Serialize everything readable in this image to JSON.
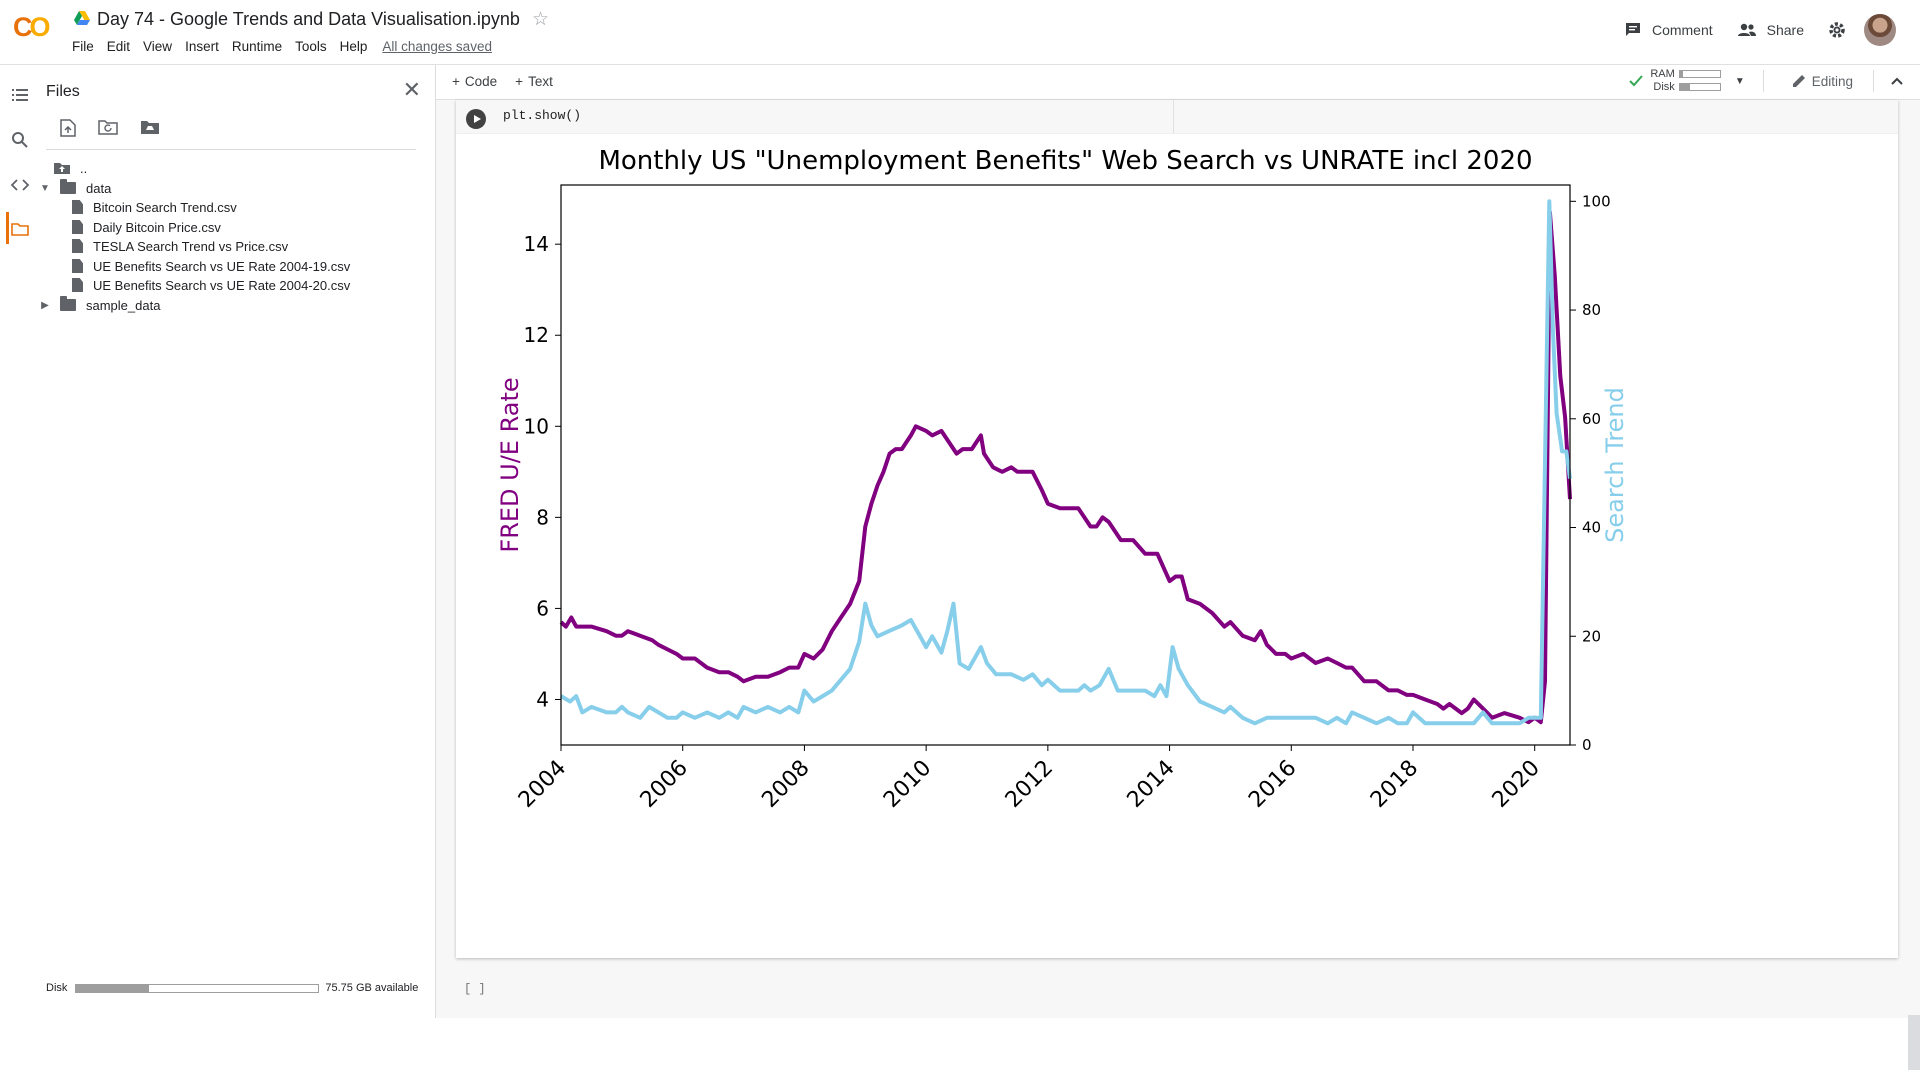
{
  "header": {
    "logo": "CO",
    "notebook_title": "Day 74 - Google Trends and Data Visualisation.ipynb",
    "menu": [
      "File",
      "Edit",
      "View",
      "Insert",
      "Runtime",
      "Tools",
      "Help"
    ],
    "save_status": "All changes saved",
    "comment_label": "Comment",
    "share_label": "Share"
  },
  "files_panel": {
    "title": "Files",
    "tree": [
      {
        "label": "..",
        "type": "up"
      },
      {
        "label": "data",
        "type": "folder",
        "expanded": true
      },
      {
        "label": "Bitcoin Search Trend.csv",
        "type": "file"
      },
      {
        "label": "Daily Bitcoin Price.csv",
        "type": "file"
      },
      {
        "label": "TESLA Search Trend vs Price.csv",
        "type": "file"
      },
      {
        "label": "UE Benefits Search vs UE Rate 2004-19.csv",
        "type": "file"
      },
      {
        "label": "UE Benefits Search vs UE Rate 2004-20.csv",
        "type": "file"
      },
      {
        "label": "sample_data",
        "type": "folder",
        "expanded": false
      }
    ],
    "disk_label": "Disk",
    "disk_available": "75.75 GB available",
    "disk_used_fraction": 0.3
  },
  "toolbar": {
    "add_code": "Code",
    "add_text": "Text",
    "ram_label": "RAM",
    "disk_label": "Disk",
    "ram_fraction": 0.08,
    "disk_fraction": 0.25,
    "mode_label": "Editing"
  },
  "cell": {
    "code": "plt.show()",
    "empty_cell_marker": "[ ]"
  },
  "chart_data": {
    "type": "line",
    "title": "Monthly US \"Unemployment Benefits\" Web Search vs UNRATE incl 2020",
    "ylabel_left": "FRED U/E Rate",
    "ylabel_right": "Search Trend",
    "xlim": [
      2004.0,
      2020.58
    ],
    "ylim_left": [
      3.0,
      15.3
    ],
    "ylim_right": [
      0,
      103
    ],
    "x_ticks": [
      "2004",
      "2006",
      "2008",
      "2010",
      "2012",
      "2014",
      "2016",
      "2018",
      "2020"
    ],
    "y_ticks_left": [
      "4",
      "6",
      "8",
      "10",
      "12",
      "14"
    ],
    "y_ticks_right": [
      "0",
      "20",
      "40",
      "60",
      "80",
      "100"
    ],
    "series": [
      {
        "name": "FRED U/E Rate",
        "axis": "left",
        "color": "#800080",
        "points": [
          [
            2004.0,
            5.7
          ],
          [
            2004.08,
            5.6
          ],
          [
            2004.17,
            5.8
          ],
          [
            2004.25,
            5.6
          ],
          [
            2004.5,
            5.6
          ],
          [
            2004.75,
            5.5
          ],
          [
            2004.9,
            5.4
          ],
          [
            2005.0,
            5.4
          ],
          [
            2005.1,
            5.5
          ],
          [
            2005.3,
            5.4
          ],
          [
            2005.5,
            5.3
          ],
          [
            2005.6,
            5.2
          ],
          [
            2005.75,
            5.1
          ],
          [
            2005.9,
            5.0
          ],
          [
            2006.0,
            4.9
          ],
          [
            2006.2,
            4.9
          ],
          [
            2006.4,
            4.7
          ],
          [
            2006.6,
            4.6
          ],
          [
            2006.75,
            4.6
          ],
          [
            2006.9,
            4.5
          ],
          [
            2007.0,
            4.4
          ],
          [
            2007.2,
            4.5
          ],
          [
            2007.4,
            4.5
          ],
          [
            2007.6,
            4.6
          ],
          [
            2007.75,
            4.7
          ],
          [
            2007.9,
            4.7
          ],
          [
            2008.0,
            5.0
          ],
          [
            2008.15,
            4.9
          ],
          [
            2008.3,
            5.1
          ],
          [
            2008.45,
            5.5
          ],
          [
            2008.6,
            5.8
          ],
          [
            2008.75,
            6.1
          ],
          [
            2008.9,
            6.6
          ],
          [
            2009.0,
            7.8
          ],
          [
            2009.1,
            8.3
          ],
          [
            2009.2,
            8.7
          ],
          [
            2009.3,
            9.0
          ],
          [
            2009.4,
            9.4
          ],
          [
            2009.5,
            9.5
          ],
          [
            2009.6,
            9.5
          ],
          [
            2009.75,
            9.8
          ],
          [
            2009.83,
            10.0
          ],
          [
            2010.0,
            9.9
          ],
          [
            2010.1,
            9.8
          ],
          [
            2010.25,
            9.9
          ],
          [
            2010.4,
            9.6
          ],
          [
            2010.5,
            9.4
          ],
          [
            2010.6,
            9.5
          ],
          [
            2010.75,
            9.5
          ],
          [
            2010.9,
            9.8
          ],
          [
            2010.95,
            9.4
          ],
          [
            2011.1,
            9.1
          ],
          [
            2011.25,
            9.0
          ],
          [
            2011.4,
            9.1
          ],
          [
            2011.5,
            9.0
          ],
          [
            2011.75,
            9.0
          ],
          [
            2011.9,
            8.6
          ],
          [
            2012.0,
            8.3
          ],
          [
            2012.2,
            8.2
          ],
          [
            2012.5,
            8.2
          ],
          [
            2012.6,
            8.0
          ],
          [
            2012.7,
            7.8
          ],
          [
            2012.8,
            7.8
          ],
          [
            2012.9,
            8.0
          ],
          [
            2013.0,
            7.9
          ],
          [
            2013.2,
            7.5
          ],
          [
            2013.4,
            7.5
          ],
          [
            2013.6,
            7.2
          ],
          [
            2013.8,
            7.2
          ],
          [
            2013.9,
            6.9
          ],
          [
            2014.0,
            6.6
          ],
          [
            2014.1,
            6.7
          ],
          [
            2014.2,
            6.7
          ],
          [
            2014.3,
            6.2
          ],
          [
            2014.5,
            6.1
          ],
          [
            2014.7,
            5.9
          ],
          [
            2014.9,
            5.6
          ],
          [
            2015.0,
            5.7
          ],
          [
            2015.2,
            5.4
          ],
          [
            2015.4,
            5.3
          ],
          [
            2015.5,
            5.5
          ],
          [
            2015.6,
            5.2
          ],
          [
            2015.75,
            5.0
          ],
          [
            2015.9,
            5.0
          ],
          [
            2016.0,
            4.9
          ],
          [
            2016.2,
            5.0
          ],
          [
            2016.4,
            4.8
          ],
          [
            2016.6,
            4.9
          ],
          [
            2016.75,
            4.8
          ],
          [
            2016.9,
            4.7
          ],
          [
            2017.0,
            4.7
          ],
          [
            2017.2,
            4.4
          ],
          [
            2017.4,
            4.4
          ],
          [
            2017.6,
            4.2
          ],
          [
            2017.75,
            4.2
          ],
          [
            2017.9,
            4.1
          ],
          [
            2018.0,
            4.1
          ],
          [
            2018.2,
            4.0
          ],
          [
            2018.4,
            3.9
          ],
          [
            2018.5,
            3.8
          ],
          [
            2018.6,
            3.9
          ],
          [
            2018.8,
            3.7
          ],
          [
            2018.9,
            3.8
          ],
          [
            2019.0,
            4.0
          ],
          [
            2019.15,
            3.8
          ],
          [
            2019.3,
            3.6
          ],
          [
            2019.5,
            3.7
          ],
          [
            2019.75,
            3.6
          ],
          [
            2019.9,
            3.5
          ],
          [
            2020.0,
            3.6
          ],
          [
            2020.1,
            3.5
          ],
          [
            2020.17,
            4.4
          ],
          [
            2020.25,
            14.7
          ],
          [
            2020.33,
            13.3
          ],
          [
            2020.42,
            11.1
          ],
          [
            2020.5,
            10.2
          ],
          [
            2020.58,
            8.4
          ]
        ]
      },
      {
        "name": "Search Trend",
        "axis": "right",
        "color": "#87ceeb",
        "points": [
          [
            2004.0,
            9
          ],
          [
            2004.15,
            8
          ],
          [
            2004.25,
            9
          ],
          [
            2004.35,
            6
          ],
          [
            2004.5,
            7
          ],
          [
            2004.75,
            6
          ],
          [
            2004.9,
            6
          ],
          [
            2005.0,
            7
          ],
          [
            2005.1,
            6
          ],
          [
            2005.3,
            5
          ],
          [
            2005.45,
            7
          ],
          [
            2005.6,
            6
          ],
          [
            2005.75,
            5
          ],
          [
            2005.9,
            5
          ],
          [
            2006.0,
            6
          ],
          [
            2006.2,
            5
          ],
          [
            2006.4,
            6
          ],
          [
            2006.6,
            5
          ],
          [
            2006.75,
            6
          ],
          [
            2006.9,
            5
          ],
          [
            2007.0,
            7
          ],
          [
            2007.2,
            6
          ],
          [
            2007.4,
            7
          ],
          [
            2007.6,
            6
          ],
          [
            2007.75,
            7
          ],
          [
            2007.9,
            6
          ],
          [
            2008.0,
            10
          ],
          [
            2008.15,
            8
          ],
          [
            2008.3,
            9
          ],
          [
            2008.45,
            10
          ],
          [
            2008.6,
            12
          ],
          [
            2008.75,
            14
          ],
          [
            2008.9,
            19
          ],
          [
            2009.0,
            26
          ],
          [
            2009.1,
            22
          ],
          [
            2009.2,
            20
          ],
          [
            2009.4,
            21
          ],
          [
            2009.6,
            22
          ],
          [
            2009.75,
            23
          ],
          [
            2009.9,
            20
          ],
          [
            2010.0,
            18
          ],
          [
            2010.1,
            20
          ],
          [
            2010.25,
            17
          ],
          [
            2010.35,
            21
          ],
          [
            2010.45,
            26
          ],
          [
            2010.55,
            15
          ],
          [
            2010.7,
            14
          ],
          [
            2010.9,
            18
          ],
          [
            2011.0,
            15
          ],
          [
            2011.15,
            13
          ],
          [
            2011.4,
            13
          ],
          [
            2011.6,
            12
          ],
          [
            2011.75,
            13
          ],
          [
            2011.9,
            11
          ],
          [
            2012.0,
            12
          ],
          [
            2012.2,
            10
          ],
          [
            2012.5,
            10
          ],
          [
            2012.6,
            11
          ],
          [
            2012.7,
            10
          ],
          [
            2012.85,
            11
          ],
          [
            2013.0,
            14
          ],
          [
            2013.15,
            10
          ],
          [
            2013.4,
            10
          ],
          [
            2013.6,
            10
          ],
          [
            2013.75,
            9
          ],
          [
            2013.85,
            11
          ],
          [
            2013.95,
            9
          ],
          [
            2014.05,
            18
          ],
          [
            2014.15,
            14
          ],
          [
            2014.3,
            11
          ],
          [
            2014.5,
            8
          ],
          [
            2014.7,
            7
          ],
          [
            2014.9,
            6
          ],
          [
            2015.0,
            7
          ],
          [
            2015.2,
            5
          ],
          [
            2015.4,
            4
          ],
          [
            2015.6,
            5
          ],
          [
            2015.8,
            5
          ],
          [
            2016.0,
            5
          ],
          [
            2016.2,
            5
          ],
          [
            2016.4,
            5
          ],
          [
            2016.6,
            4
          ],
          [
            2016.75,
            5
          ],
          [
            2016.9,
            4
          ],
          [
            2017.0,
            6
          ],
          [
            2017.2,
            5
          ],
          [
            2017.4,
            4
          ],
          [
            2017.6,
            5
          ],
          [
            2017.75,
            4
          ],
          [
            2017.9,
            4
          ],
          [
            2018.0,
            6
          ],
          [
            2018.2,
            4
          ],
          [
            2018.4,
            4
          ],
          [
            2018.6,
            4
          ],
          [
            2018.8,
            4
          ],
          [
            2019.0,
            4
          ],
          [
            2019.15,
            6
          ],
          [
            2019.3,
            4
          ],
          [
            2019.5,
            4
          ],
          [
            2019.75,
            4
          ],
          [
            2019.9,
            5
          ],
          [
            2020.0,
            5
          ],
          [
            2020.1,
            5
          ],
          [
            2020.18,
            60
          ],
          [
            2020.24,
            100
          ],
          [
            2020.3,
            76
          ],
          [
            2020.36,
            61
          ],
          [
            2020.45,
            54
          ],
          [
            2020.52,
            54
          ],
          [
            2020.58,
            49
          ]
        ]
      }
    ]
  }
}
